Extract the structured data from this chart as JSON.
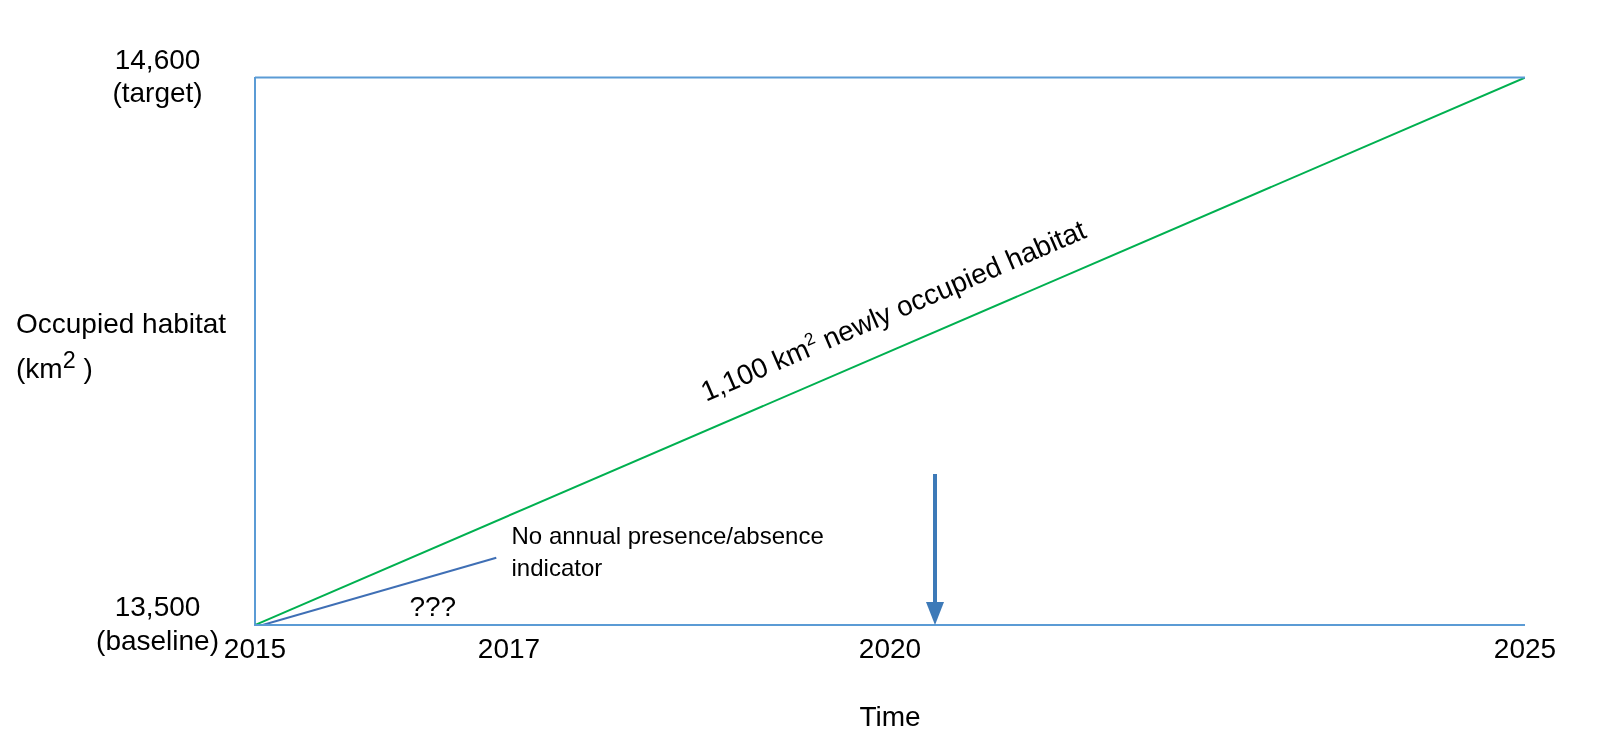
{
  "chart_data": {
    "type": "line",
    "xlabel": "Time",
    "ylabel": "Occupied habitat (km$^{2}$ )",
    "xlim": [
      2015,
      2025
    ],
    "xticks": [
      2015,
      2017,
      2020,
      2025
    ],
    "ylim": [
      13500,
      14600
    ],
    "yticks": [
      {
        "value": 13500,
        "label": "13,500\n(baseline)"
      },
      {
        "value": 14600,
        "label": "14,600\n(target)"
      }
    ],
    "series": [
      {
        "color": "#00b050",
        "x": [
          2015,
          2025
        ],
        "values": [
          13500,
          14600
        ]
      },
      {
        "color": "#3f6fb5",
        "x": [
          2015.06,
          2016.9
        ],
        "values": [
          13500,
          13635
        ]
      }
    ],
    "annotations": [
      "1,100 km$^{2}$ newly occupied habitat",
      "No annual presence/absence\nindicator",
      "???"
    ],
    "marker": "none",
    "line_style": "solid",
    "legend": false
  }
}
